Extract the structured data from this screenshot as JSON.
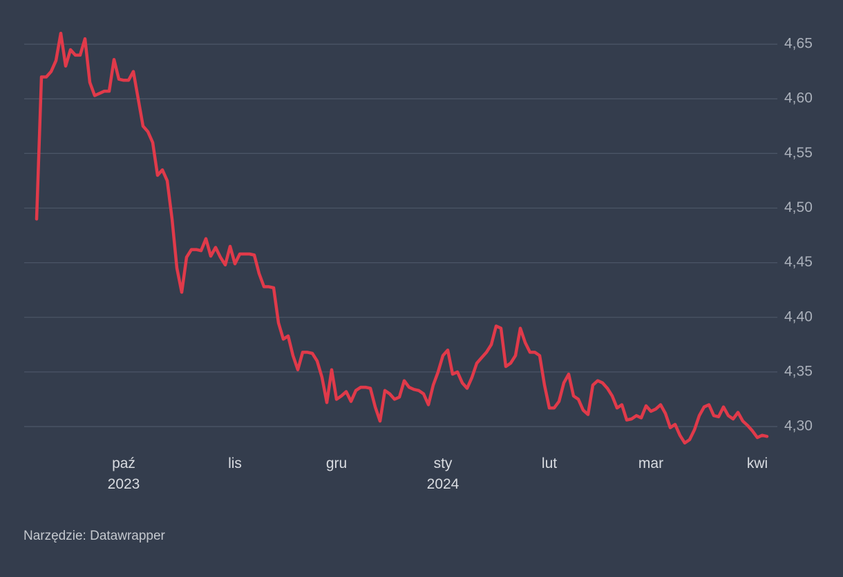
{
  "chart_data": {
    "type": "line",
    "categories": [
      null,
      null,
      null,
      null,
      null,
      null,
      null,
      null,
      null,
      null,
      null,
      null,
      null,
      null,
      null,
      null,
      null,
      null,
      "paź\n2023",
      null,
      null,
      null,
      null,
      null,
      null,
      null,
      null,
      null,
      null,
      null,
      null,
      null,
      null,
      null,
      null,
      null,
      null,
      null,
      null,
      null,
      null,
      "lis",
      null,
      null,
      null,
      null,
      null,
      null,
      null,
      null,
      null,
      null,
      null,
      null,
      null,
      null,
      null,
      null,
      null,
      null,
      null,
      null,
      "gru",
      null,
      null,
      null,
      null,
      null,
      null,
      null,
      null,
      null,
      null,
      null,
      null,
      null,
      null,
      null,
      null,
      null,
      null,
      null,
      null,
      null,
      "sty\n2024",
      null,
      null,
      null,
      null,
      null,
      null,
      null,
      null,
      null,
      null,
      null,
      null,
      null,
      null,
      null,
      null,
      null,
      null,
      null,
      null,
      null,
      "lut",
      null,
      null,
      null,
      null,
      null,
      null,
      null,
      null,
      null,
      null,
      null,
      null,
      null,
      null,
      null,
      null,
      null,
      null,
      null,
      null,
      "mar",
      null,
      null,
      null,
      null,
      null,
      null,
      null,
      null,
      null,
      null,
      null,
      null,
      null,
      null,
      null,
      null,
      null,
      null,
      null,
      null,
      null,
      "kwi",
      null,
      null
    ],
    "series": [
      {
        "color": "#e03a4a",
        "values": [
          4.49,
          4.62,
          4.62,
          4.625,
          4.635,
          4.66,
          4.63,
          4.645,
          4.64,
          4.64,
          4.655,
          4.615,
          4.603,
          4.605,
          4.607,
          4.607,
          4.636,
          4.618,
          4.617,
          4.617,
          4.625,
          4.6,
          4.575,
          4.57,
          4.56,
          4.53,
          4.535,
          4.525,
          4.49,
          4.445,
          4.423,
          4.455,
          4.462,
          4.462,
          4.461,
          4.472,
          4.456,
          4.464,
          4.455,
          4.448,
          4.465,
          4.449,
          4.458,
          4.458,
          4.458,
          4.457,
          4.44,
          4.428,
          4.428,
          4.427,
          4.395,
          4.38,
          4.383,
          4.365,
          4.352,
          4.368,
          4.368,
          4.367,
          4.36,
          4.345,
          4.322,
          4.352,
          4.325,
          4.328,
          4.332,
          4.323,
          4.333,
          4.336,
          4.336,
          4.335,
          4.318,
          4.305,
          4.333,
          4.33,
          4.325,
          4.327,
          4.342,
          4.336,
          4.334,
          4.333,
          4.33,
          4.32,
          4.338,
          4.35,
          4.365,
          4.37,
          4.348,
          4.35,
          4.34,
          4.335,
          4.345,
          4.358,
          4.363,
          4.368,
          4.375,
          4.392,
          4.39,
          4.355,
          4.358,
          4.365,
          4.39,
          4.377,
          4.368,
          4.368,
          4.365,
          4.338,
          4.317,
          4.317,
          4.323,
          4.34,
          4.348,
          4.328,
          4.325,
          4.315,
          4.311,
          4.338,
          4.342,
          4.34,
          4.335,
          4.328,
          4.317,
          4.32,
          4.306,
          4.307,
          4.31,
          4.308,
          4.319,
          4.314,
          4.316,
          4.32,
          4.312,
          4.299,
          4.302,
          4.292,
          4.285,
          4.288,
          4.297,
          4.31,
          4.318,
          4.32,
          4.31,
          4.309,
          4.318,
          4.31,
          4.307,
          4.313,
          4.305,
          4.301,
          4.296,
          4.29,
          4.292,
          4.291
        ]
      }
    ],
    "ylim": [
      4.28,
      4.665
    ],
    "yticks": [
      {
        "value": 4.3,
        "label": "4,30"
      },
      {
        "value": 4.35,
        "label": "4,35"
      },
      {
        "value": 4.4,
        "label": "4,40"
      },
      {
        "value": 4.45,
        "label": "4,45"
      },
      {
        "value": 4.5,
        "label": "4,50"
      },
      {
        "value": 4.55,
        "label": "4,55"
      },
      {
        "value": 4.6,
        "label": "4,60"
      },
      {
        "value": 4.65,
        "label": "4,65"
      }
    ],
    "grid": true,
    "source": "Narzędzie: Datawrapper"
  }
}
